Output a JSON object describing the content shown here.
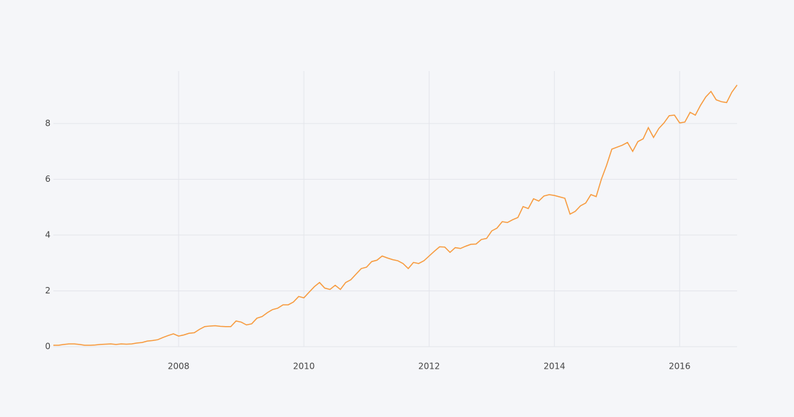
{
  "chart_data": {
    "type": "line",
    "color": "#f7993b",
    "grid": true,
    "x": [
      2006,
      2006.083,
      2006.167,
      2006.25,
      2006.333,
      2006.417,
      2006.5,
      2006.583,
      2006.667,
      2006.75,
      2006.833,
      2006.917,
      2007,
      2007.083,
      2007.167,
      2007.25,
      2007.333,
      2007.417,
      2007.5,
      2007.583,
      2007.667,
      2007.75,
      2007.833,
      2007.917,
      2008,
      2008.083,
      2008.167,
      2008.25,
      2008.333,
      2008.417,
      2008.5,
      2008.583,
      2008.667,
      2008.75,
      2008.833,
      2008.917,
      2009,
      2009.083,
      2009.167,
      2009.25,
      2009.333,
      2009.417,
      2009.5,
      2009.583,
      2009.667,
      2009.75,
      2009.833,
      2009.917,
      2010,
      2010.083,
      2010.167,
      2010.25,
      2010.333,
      2010.417,
      2010.5,
      2010.583,
      2010.667,
      2010.75,
      2010.833,
      2010.917,
      2011,
      2011.083,
      2011.167,
      2011.25,
      2011.333,
      2011.417,
      2011.5,
      2011.583,
      2011.667,
      2011.75,
      2011.833,
      2011.917,
      2012,
      2012.083,
      2012.167,
      2012.25,
      2012.333,
      2012.417,
      2012.5,
      2012.583,
      2012.667,
      2012.75,
      2012.833,
      2012.917,
      2013,
      2013.083,
      2013.167,
      2013.25,
      2013.333,
      2013.417,
      2013.5,
      2013.583,
      2013.667,
      2013.75,
      2013.833,
      2013.917,
      2014,
      2014.083,
      2014.167,
      2014.25,
      2014.333,
      2014.417,
      2014.5,
      2014.583,
      2014.667,
      2014.75,
      2014.833,
      2014.917,
      2015,
      2015.083,
      2015.167,
      2015.25,
      2015.333,
      2015.417,
      2015.5,
      2015.583,
      2015.667,
      2015.75,
      2015.833,
      2015.917,
      2016,
      2016.083,
      2016.167,
      2016.25,
      2016.333,
      2016.417,
      2016.5,
      2016.583,
      2016.667,
      2016.75,
      2016.833,
      2016.917
    ],
    "values": [
      0.05,
      0.05,
      0.08,
      0.1,
      0.1,
      0.08,
      0.05,
      0.05,
      0.06,
      0.08,
      0.09,
      0.1,
      0.08,
      0.1,
      0.09,
      0.1,
      0.13,
      0.15,
      0.2,
      0.22,
      0.25,
      0.33,
      0.4,
      0.46,
      0.38,
      0.42,
      0.48,
      0.5,
      0.62,
      0.72,
      0.74,
      0.75,
      0.73,
      0.72,
      0.72,
      0.92,
      0.88,
      0.78,
      0.82,
      1.02,
      1.08,
      1.22,
      1.33,
      1.38,
      1.5,
      1.5,
      1.6,
      1.8,
      1.75,
      1.95,
      2.15,
      2.3,
      2.1,
      2.05,
      2.2,
      2.05,
      2.3,
      2.4,
      2.6,
      2.8,
      2.85,
      3.05,
      3.1,
      3.25,
      3.18,
      3.12,
      3.08,
      2.98,
      2.8,
      3.02,
      2.98,
      3.08,
      3.25,
      3.42,
      3.58,
      3.57,
      3.38,
      3.55,
      3.52,
      3.6,
      3.67,
      3.68,
      3.84,
      3.88,
      4.15,
      4.25,
      4.48,
      4.45,
      4.55,
      4.63,
      5.02,
      4.95,
      5.3,
      5.22,
      5.4,
      5.45,
      5.42,
      5.37,
      5.32,
      4.75,
      4.85,
      5.05,
      5.15,
      5.45,
      5.38,
      6.0,
      6.5,
      7.08,
      7.15,
      7.22,
      7.32,
      7.0,
      7.35,
      7.45,
      7.85,
      7.5,
      7.82,
      8.02,
      8.28,
      8.3,
      8.02,
      8.05,
      8.4,
      8.3,
      8.65,
      8.95,
      9.15,
      8.85,
      8.78,
      8.75,
      9.12,
      9.38
    ],
    "xlim": [
      2006,
      2016.917
    ],
    "xticks": [
      2008,
      2010,
      2012,
      2014,
      2016
    ],
    "ylim": [
      0,
      9.88
    ],
    "yticks": [
      0,
      2,
      4,
      6,
      8
    ]
  }
}
